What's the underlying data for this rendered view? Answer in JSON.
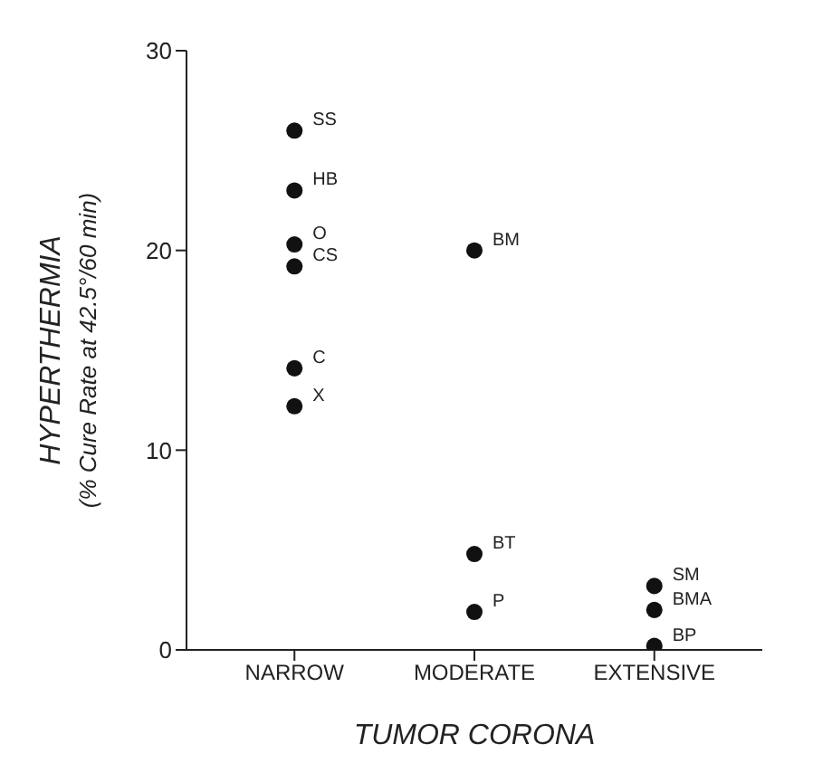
{
  "chart_data": {
    "type": "scatter",
    "xlabel": "TUMOR CORONA",
    "ylabel": "HYPERTHERMIA\n(% Cure Rate at 42.5°/60 min)",
    "categories": [
      "NARROW",
      "MODERATE",
      "EXTENSIVE"
    ],
    "series": [
      {
        "color": "#111111",
        "x": [
          "NARROW",
          "NARROW",
          "NARROW",
          "NARROW",
          "NARROW",
          "NARROW",
          "MODERATE",
          "MODERATE",
          "MODERATE",
          "EXTENSIVE",
          "EXTENSIVE",
          "EXTENSIVE"
        ],
        "values": [
          26,
          23,
          20.3,
          19.2,
          14.1,
          12.2,
          20,
          4.8,
          1.9,
          3.2,
          2,
          0.2
        ]
      }
    ],
    "annotations": [
      {
        "text": "SS",
        "x": "NARROW",
        "y": 26
      },
      {
        "text": "HB",
        "x": "NARROW",
        "y": 23
      },
      {
        "text": "O",
        "x": "NARROW",
        "y": 20.3
      },
      {
        "text": "CS",
        "x": "NARROW",
        "y": 19.2
      },
      {
        "text": "C",
        "x": "NARROW",
        "y": 14.1
      },
      {
        "text": "X",
        "x": "NARROW",
        "y": 12.2
      },
      {
        "text": "BM",
        "x": "MODERATE",
        "y": 20
      },
      {
        "text": "BT",
        "x": "MODERATE",
        "y": 4.8
      },
      {
        "text": "P",
        "x": "MODERATE",
        "y": 1.9
      },
      {
        "text": "SM",
        "x": "EXTENSIVE",
        "y": 3.2
      },
      {
        "text": "BMA",
        "x": "EXTENSIVE",
        "y": 2
      },
      {
        "text": "BP",
        "x": "EXTENSIVE",
        "y": 0.2
      }
    ],
    "ylim": [
      0,
      30
    ],
    "yticks": [
      0,
      10,
      20,
      30
    ],
    "grid": false
  }
}
